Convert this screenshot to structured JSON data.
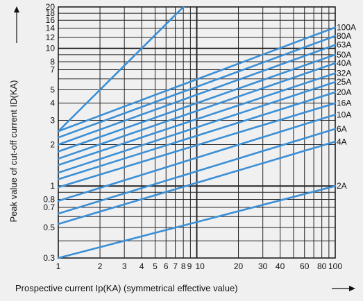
{
  "chart_data": {
    "type": "line",
    "x_scale": "log",
    "y_scale": "log",
    "xlim": [
      1,
      100
    ],
    "ylim": [
      0.3,
      20
    ],
    "xlabel": "Prospective current Ip(KA) (symmetrical effective value)",
    "ylabel": "Peak value of cut-off current ID(KA)",
    "x_ticks": [
      1,
      2,
      3,
      4,
      5,
      6,
      7,
      8,
      9,
      10,
      20,
      30,
      40,
      60,
      80,
      100
    ],
    "x_tick_labels": [
      "1",
      "2",
      "3",
      "4",
      "5",
      "6",
      "7",
      "8",
      "9",
      "10",
      "20",
      "30",
      "40",
      "60",
      "80",
      "100"
    ],
    "y_ticks": [
      0.3,
      0.5,
      0.7,
      0.8,
      1,
      2,
      3,
      4,
      5,
      7,
      8,
      10,
      12,
      14,
      16,
      18,
      20
    ],
    "y_tick_labels": [
      "0.3",
      "0.5",
      "0.7",
      "0.8",
      "1",
      "2",
      "3",
      "4",
      "5",
      "7",
      "8",
      "10",
      "12",
      "14",
      "16",
      "18",
      "20"
    ],
    "grid": true,
    "line_color": "#3a8fd6",
    "limit_line": {
      "x": [
        1,
        8
      ],
      "y": [
        2.5,
        20
      ]
    },
    "series": [
      {
        "name": "100A",
        "x": [
          1,
          100
        ],
        "y": [
          2.5,
          14.2
        ]
      },
      {
        "name": "80A",
        "x": [
          1,
          100
        ],
        "y": [
          2.25,
          12.3
        ]
      },
      {
        "name": "63A",
        "x": [
          1,
          100
        ],
        "y": [
          2.0,
          10.6
        ]
      },
      {
        "name": "50A",
        "x": [
          1,
          100
        ],
        "y": [
          1.78,
          9.0
        ]
      },
      {
        "name": "40A",
        "x": [
          1,
          100
        ],
        "y": [
          1.58,
          7.8
        ]
      },
      {
        "name": "32A",
        "x": [
          1,
          100
        ],
        "y": [
          1.42,
          6.6
        ]
      },
      {
        "name": "25A",
        "x": [
          1,
          100
        ],
        "y": [
          1.25,
          5.7
        ]
      },
      {
        "name": "20A",
        "x": [
          1,
          100
        ],
        "y": [
          1.12,
          4.8
        ]
      },
      {
        "name": "16A",
        "x": [
          1,
          100
        ],
        "y": [
          0.98,
          4.0
        ]
      },
      {
        "name": "10A",
        "x": [
          1,
          100
        ],
        "y": [
          0.78,
          3.3
        ]
      },
      {
        "name": "6A",
        "x": [
          1,
          100
        ],
        "y": [
          0.63,
          2.6
        ]
      },
      {
        "name": "4A",
        "x": [
          1,
          100
        ],
        "y": [
          0.53,
          2.1
        ]
      },
      {
        "name": "2A",
        "x": [
          1,
          100
        ],
        "y": [
          0.3,
          1.0
        ]
      }
    ]
  }
}
